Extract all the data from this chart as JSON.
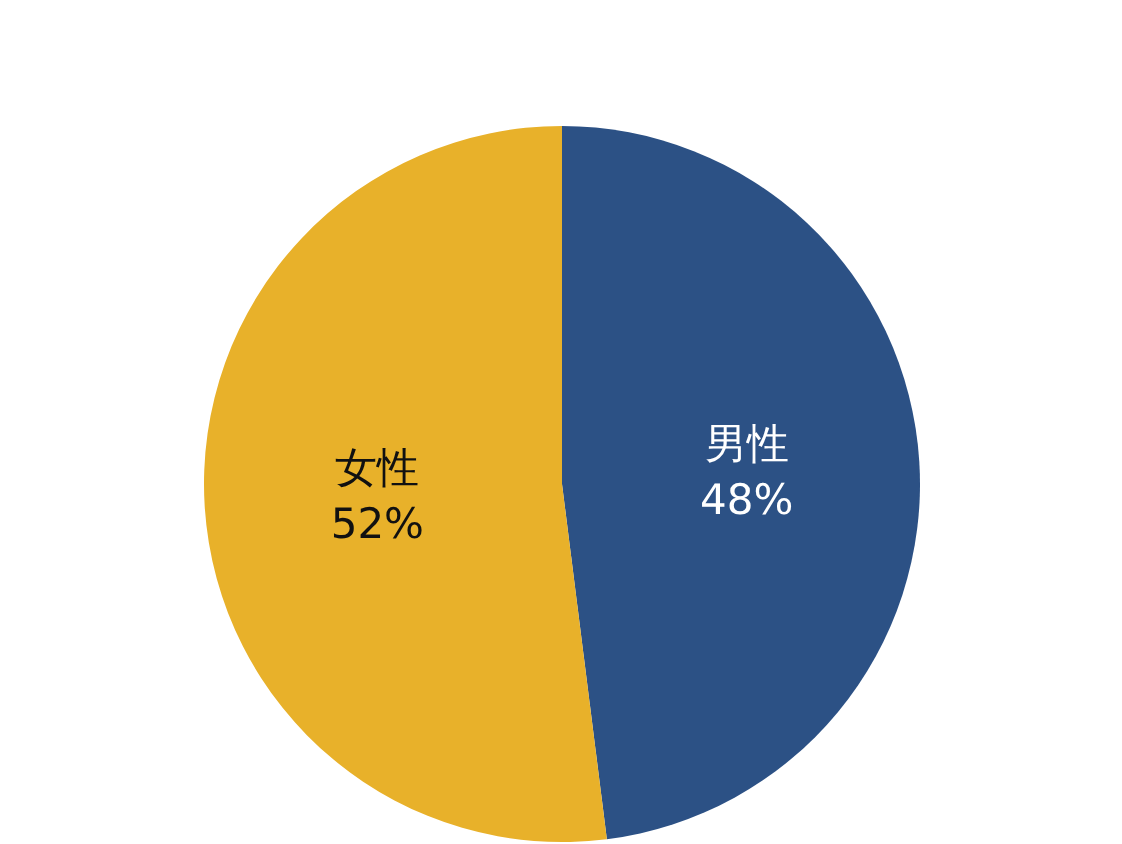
{
  "chart_data": {
    "type": "pie",
    "categories": [
      "男性",
      "女性"
    ],
    "values": [
      48,
      52
    ],
    "colors": [
      "#2c5185",
      "#e8b12a"
    ],
    "value_labels": [
      "48%",
      "52%"
    ],
    "legend": false
  }
}
